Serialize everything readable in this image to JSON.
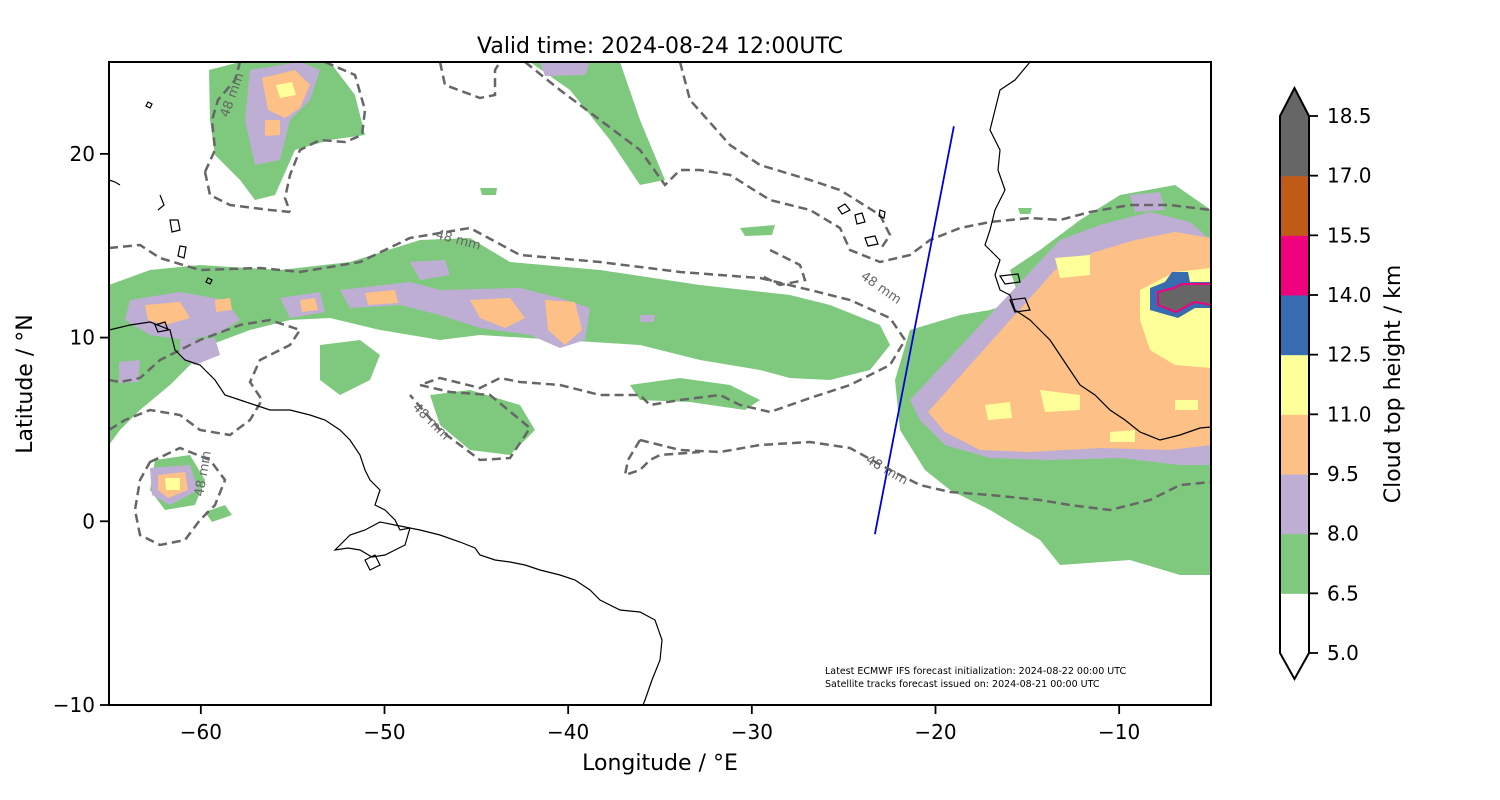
{
  "title": "Valid time: 2024-08-24 12:00UTC",
  "x_axis": {
    "label": "Longitude / °E",
    "ticks": [
      {
        "value": -60,
        "label": "−60"
      },
      {
        "value": -50,
        "label": "−50"
      },
      {
        "value": -40,
        "label": "−40"
      },
      {
        "value": -30,
        "label": "−30"
      },
      {
        "value": -20,
        "label": "−20"
      },
      {
        "value": -10,
        "label": "−10"
      }
    ]
  },
  "y_axis": {
    "label": "Latitude / °N",
    "ticks": [
      {
        "value": 20,
        "label": "20"
      },
      {
        "value": 10,
        "label": "10"
      },
      {
        "value": 0,
        "label": "0"
      },
      {
        "value": -10,
        "label": "−10"
      }
    ]
  },
  "colorbar": {
    "label": "Cloud top height / km",
    "levels": [
      "5.0",
      "6.5",
      "8.0",
      "9.5",
      "11.0",
      "12.5",
      "14.0",
      "15.5",
      "17.0",
      "18.5"
    ],
    "colors": [
      "#ffffff",
      "#7fc97f",
      "#beaed4",
      "#fdc086",
      "#ffff99",
      "#386cb0",
      "#f0027f",
      "#bf5b17",
      "#666666"
    ]
  },
  "contour_labels": [
    "48 mm",
    "48 mm",
    "48 mm",
    "48 mm",
    "48 mm"
  ],
  "notes": {
    "line1": "Latest ECMWF IFS forecast initialization: 2024-08-22 00:00 UTC",
    "line2": "Satellite tracks forecast issued on: 2024-08-21 00:00 UTC"
  },
  "satellite_track": {
    "start": {
      "lon": -23.3,
      "lat": -0.7
    },
    "end": {
      "lon": -19.0,
      "lat": 21.5
    },
    "color": "#0000dd"
  },
  "map_extent": {
    "lon": [
      -65,
      -5
    ],
    "lat": [
      -10,
      25
    ]
  }
}
